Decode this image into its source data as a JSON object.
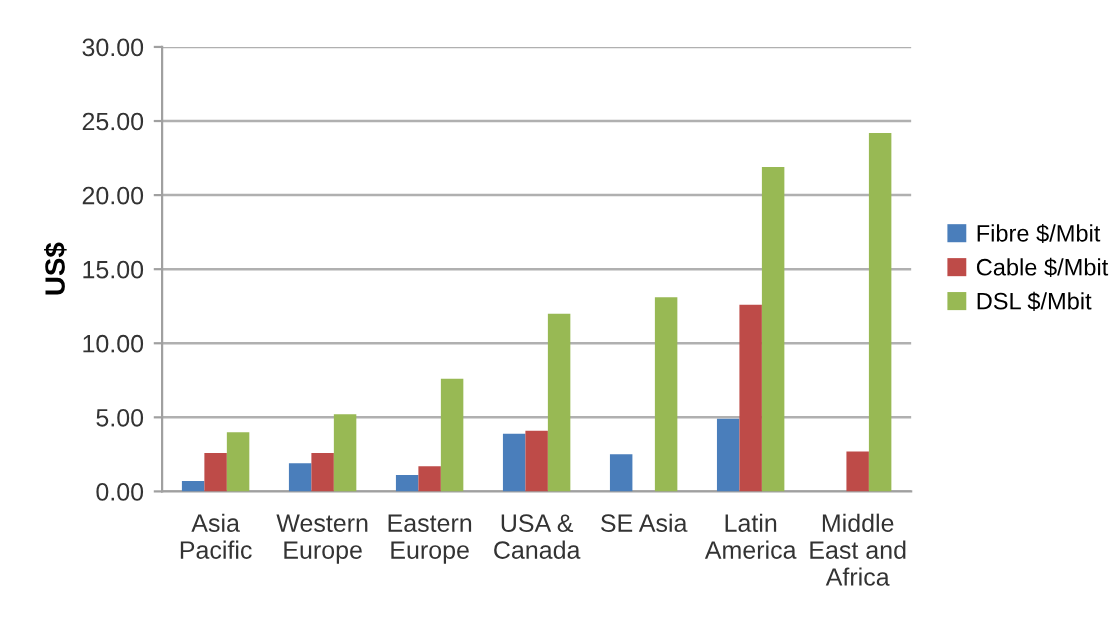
{
  "chart_data": {
    "type": "bar",
    "ylabel": "US$",
    "categories": [
      "Asia\nPacific",
      "Western\nEurope",
      "Eastern\nEurope",
      "USA &\nCanada",
      "SE Asia",
      "Latin\nAmerica",
      "Middle\nEast and\nAfrica"
    ],
    "series": [
      {
        "name": "Fibre $/Mbit",
        "color": "#4a7ebb",
        "values": [
          0.7,
          1.9,
          1.1,
          3.9,
          2.5,
          4.9,
          null
        ]
      },
      {
        "name": "Cable $/Mbit",
        "color": "#be4b48",
        "values": [
          2.6,
          2.6,
          1.7,
          4.1,
          null,
          12.6,
          2.7
        ]
      },
      {
        "name": "DSL $/Mbit",
        "color": "#98b954",
        "values": [
          4.0,
          5.2,
          7.6,
          12.0,
          13.1,
          21.9,
          24.2
        ]
      }
    ],
    "ylim": [
      0,
      30
    ],
    "yticks": [
      {
        "value": 0,
        "label": "0.00"
      },
      {
        "value": 5,
        "label": "5.00"
      },
      {
        "value": 10,
        "label": "10.00"
      },
      {
        "value": 15,
        "label": "15.00"
      },
      {
        "value": 20,
        "label": "20.00"
      },
      {
        "value": 25,
        "label": "25.00"
      },
      {
        "value": 30,
        "label": "30.00"
      }
    ],
    "grid": "y",
    "legend": "right"
  }
}
